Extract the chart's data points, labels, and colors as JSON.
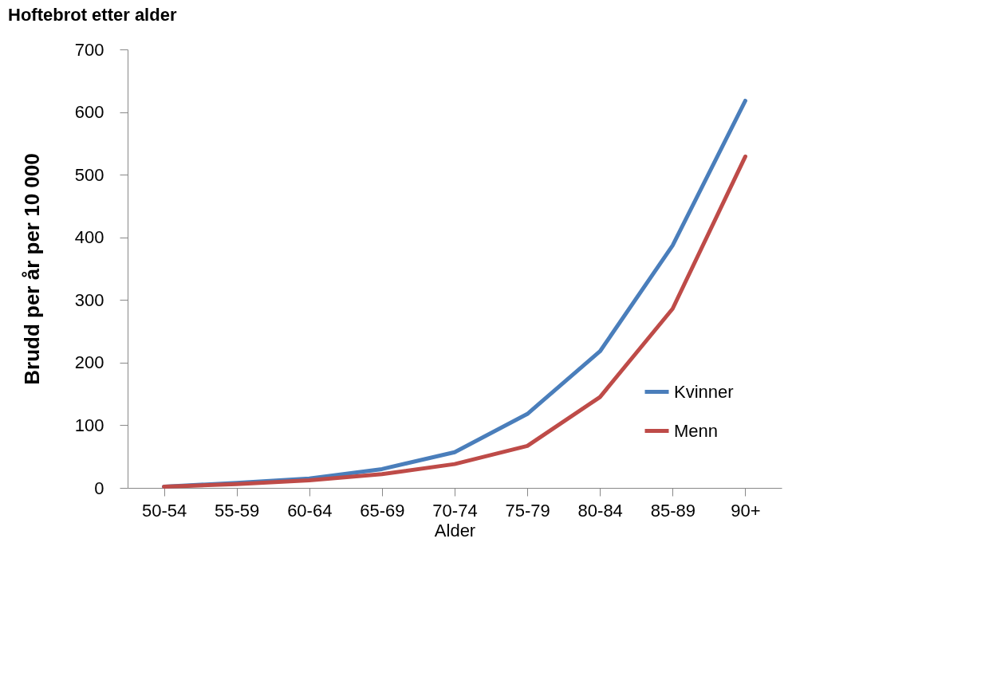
{
  "chart_data": {
    "type": "line",
    "title": "Hoftebrot etter alder",
    "xlabel": "Alder",
    "ylabel": "Brudd per år per 10 000",
    "categories": [
      "50-54",
      "55-59",
      "60-64",
      "65-69",
      "70-74",
      "75-79",
      "80-84",
      "85-89",
      "90+"
    ],
    "series": [
      {
        "name": "Kvinner",
        "color": "#4a7ebb",
        "values": [
          2,
          8,
          15,
          30,
          57,
          118,
          218,
          387,
          618
        ]
      },
      {
        "name": "Menn",
        "color": "#be4b48",
        "values": [
          2,
          6,
          12,
          22,
          38,
          67,
          145,
          286,
          529
        ]
      }
    ],
    "ylim": [
      0,
      700
    ],
    "yticks": [
      0,
      100,
      200,
      300,
      400,
      500,
      600,
      700
    ],
    "grid": false,
    "legend": "bottom right",
    "marker": "none",
    "line_style": "solid"
  }
}
